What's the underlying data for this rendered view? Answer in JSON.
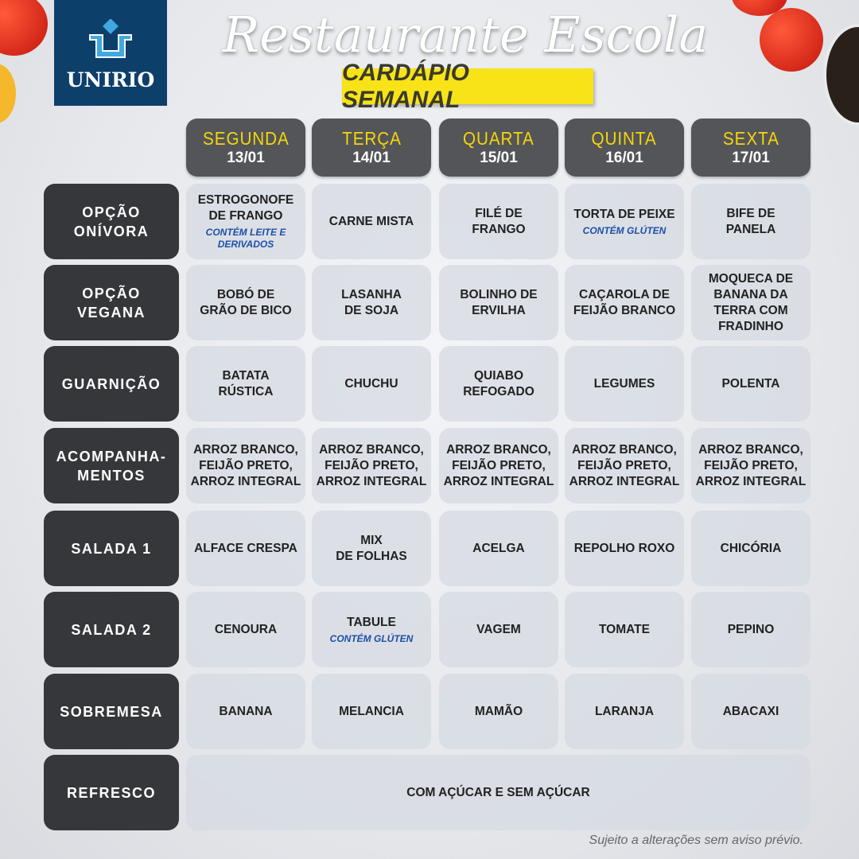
{
  "logo": {
    "text": "UNIRIO"
  },
  "title": "Restaurante Escola",
  "subtitle": "CARDÁPIO SEMANAL",
  "colors": {
    "header_bg": "#545559",
    "day_text": "#f5d60a",
    "label_bg": "#36373b",
    "note_text": "#1d4fa8",
    "subtitle_bg": "#f7e318",
    "logo_bg": "#0d3f6b"
  },
  "days": [
    {
      "name": "SEGUNDA",
      "date": "13/01"
    },
    {
      "name": "TERÇA",
      "date": "14/01"
    },
    {
      "name": "QUARTA",
      "date": "15/01"
    },
    {
      "name": "QUINTA",
      "date": "16/01"
    },
    {
      "name": "SEXTA",
      "date": "17/01"
    }
  ],
  "rows": [
    {
      "label": "OPÇÃO\nONÍVORA",
      "items": [
        {
          "text": "ESTROGONOFE\nDE FRANGO",
          "note": "CONTÉM LEITE E\nDERIVADOS"
        },
        {
          "text": "CARNE MISTA"
        },
        {
          "text": "FILÉ DE\nFRANGO"
        },
        {
          "text": "TORTA DE PEIXE",
          "note": "CONTÉM GLÚTEN"
        },
        {
          "text": "BIFE DE\nPANELA"
        }
      ]
    },
    {
      "label": "OPÇÃO\nVEGANA",
      "items": [
        {
          "text": "BOBÓ DE\nGRÃO DE BICO"
        },
        {
          "text": "LASANHA\nDE SOJA"
        },
        {
          "text": "BOLINHO DE\nERVILHA"
        },
        {
          "text": "CAÇAROLA DE\nFEIJÃO BRANCO"
        },
        {
          "text": "MOQUECA DE\nBANANA DA\nTERRA COM\nFRADINHO"
        }
      ]
    },
    {
      "label": "GUARNIÇÃO",
      "items": [
        {
          "text": "BATATA\nRÚSTICA"
        },
        {
          "text": "CHUCHU"
        },
        {
          "text": "QUIABO\nREFOGADO"
        },
        {
          "text": "LEGUMES"
        },
        {
          "text": "POLENTA"
        }
      ]
    },
    {
      "label": "ACOMPANHA-\nMENTOS",
      "items": [
        {
          "text": "ARROZ BRANCO,\nFEIJÃO PRETO,\nARROZ INTEGRAL"
        },
        {
          "text": "ARROZ BRANCO,\nFEIJÃO PRETO,\nARROZ INTEGRAL"
        },
        {
          "text": "ARROZ BRANCO,\nFEIJÃO PRETO,\nARROZ INTEGRAL"
        },
        {
          "text": "ARROZ BRANCO,\nFEIJÃO PRETO,\nARROZ INTEGRAL"
        },
        {
          "text": "ARROZ BRANCO,\nFEIJÃO PRETO,\nARROZ INTEGRAL"
        }
      ]
    },
    {
      "label": "SALADA 1",
      "items": [
        {
          "text": "ALFACE CRESPA"
        },
        {
          "text": "MIX\nDE FOLHAS"
        },
        {
          "text": "ACELGA"
        },
        {
          "text": "REPOLHO ROXO"
        },
        {
          "text": "CHICÓRIA"
        }
      ]
    },
    {
      "label": "SALADA 2",
      "items": [
        {
          "text": "CENOURA"
        },
        {
          "text": "TABULE",
          "note": "CONTÉM GLÚTEN"
        },
        {
          "text": "VAGEM"
        },
        {
          "text": "TOMATE"
        },
        {
          "text": "PEPINO"
        }
      ]
    },
    {
      "label": "SOBREMESA",
      "items": [
        {
          "text": "BANANA"
        },
        {
          "text": "MELANCIA"
        },
        {
          "text": "MAMÃO"
        },
        {
          "text": "LARANJA"
        },
        {
          "text": "ABACAXI"
        }
      ]
    },
    {
      "label": "REFRESCO",
      "items": [
        {
          "text": "COM AÇÚCAR E SEM AÇÚCAR"
        }
      ]
    }
  ],
  "footer": "Sujeito a alterações sem aviso prévio."
}
